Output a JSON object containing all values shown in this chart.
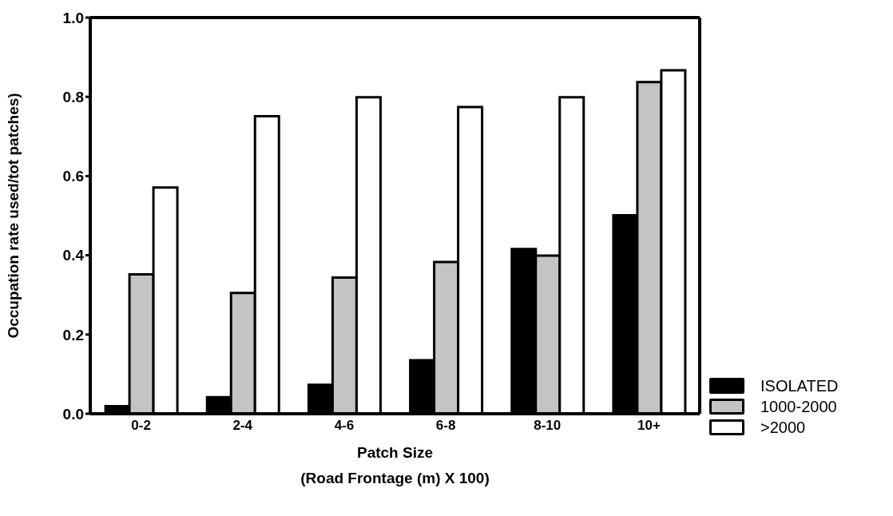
{
  "chart_data": {
    "type": "bar",
    "xlabel": "Patch Size\n(Road Frontage (m) X 100)",
    "ylabel": "Occupation rate used/tot patches)",
    "categories": [
      "0-2",
      "2-4",
      "4-6",
      "6-8",
      "8-10",
      "10+"
    ],
    "series": [
      {
        "name": "ISOLATED",
        "color": "#000000",
        "values": [
          0.019,
          0.042,
          0.073,
          0.135,
          0.416,
          0.501
        ]
      },
      {
        "name": "1000-2000",
        "color": "#c4c4c4",
        "values": [
          0.352,
          0.305,
          0.344,
          0.383,
          0.399,
          0.837
        ]
      },
      {
        "name": ">2000",
        "color": "#ffffff",
        "values": [
          0.571,
          0.751,
          0.799,
          0.774,
          0.799,
          0.867
        ]
      }
    ],
    "ylim": [
      0,
      1
    ],
    "yticks": [
      {
        "value": 0,
        "label": "0.0"
      },
      {
        "value": 0.2,
        "label": "0.2"
      },
      {
        "value": 0.4,
        "label": "0.4"
      },
      {
        "value": 0.6,
        "label": "0.6"
      },
      {
        "value": 0.8,
        "label": "0.8"
      },
      {
        "value": 1,
        "label": "1.0"
      }
    ],
    "grid": false,
    "legend": "bottom right"
  }
}
